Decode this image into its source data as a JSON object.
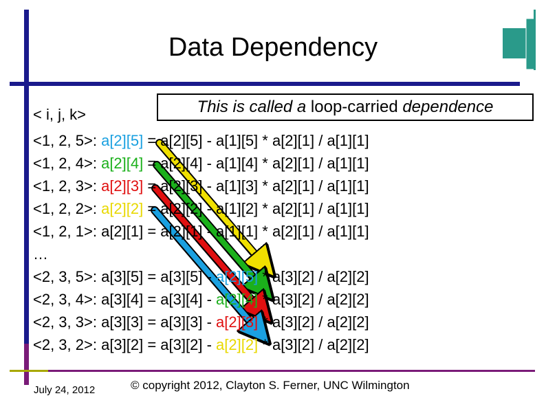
{
  "slide": {
    "title": "Data Dependency",
    "callout": {
      "part1": "This is called a",
      "part2": " loop-carried ",
      "part3": "dependence"
    },
    "header": "< i,  j,  k>",
    "ellipsis": "…",
    "rows": [
      {
        "label": "<1, 2, 5>: ",
        "a": "a[2][5]",
        "b": " = a[2][5] - a[1][5] * a[2][1] / a[1][1]"
      },
      {
        "label": "<1, 2, 4>: ",
        "a": "a[2][4]",
        "b": " = a[2][4] - a[1][4] * a[2][1] / a[1][1]"
      },
      {
        "label": "<1, 2, 3>: ",
        "a": "a[2][3]",
        "b": " = a[2][3] - a[1][3] * a[2][1] / a[1][1]"
      },
      {
        "label": "<1, 2, 2>: ",
        "a": "a[2][2]",
        "b": " = a[2][2] - a[1][2] * a[2][1] / a[1][1]"
      },
      {
        "label": "<1, 2, 1>: ",
        "a": "a[2][1]",
        "b": " = a[2][1] - a[1][1] * a[2][1] / a[1][1]"
      },
      {
        "label": "<2, 3, 5>: ",
        "a": "a[3][5] = a[3][5] - ",
        "b": "a[2][5]",
        "c": " * a[3][2] / a[2][2]"
      },
      {
        "label": "<2, 3, 4>: ",
        "a": "a[3][4] = a[3][4] - ",
        "b": "a[2][4]",
        "c": " * a[3][2] / a[2][2]"
      },
      {
        "label": "<2, 3, 3>: ",
        "a": "a[3][3] = a[3][3] - ",
        "b": "a[2][3]",
        "c": " * a[3][2] / a[2][2]"
      },
      {
        "label": "<2, 3, 2>: ",
        "a": "a[3][2] = a[3][2] - ",
        "b": "a[2][2]",
        "c": " * a[3][2] / a[2][2]"
      }
    ],
    "footer": {
      "date": "July 24, 2012",
      "copyright": "© copyright 2012, Clayton S. Ferner, UNC Wilmington"
    }
  },
  "colors": {
    "cyan": "#1aa0e0",
    "green": "#1bb01b",
    "red": "#e01010",
    "yellow": "#f0e000",
    "navy": "#1a1a8c",
    "purple": "#7a1b78",
    "olive": "#a8a800",
    "teal": "#2a9a8a"
  }
}
